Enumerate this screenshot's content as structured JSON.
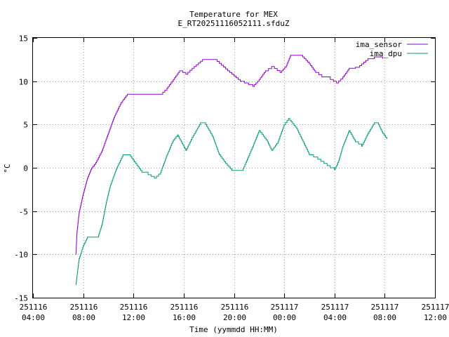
{
  "chart_data": {
    "type": "line",
    "title": "Temperature for MEX",
    "subtitle": "E_RT20251116052111.sfduZ",
    "xlabel": "Time (yymmdd HH:MM)",
    "ylabel": "°C",
    "grid": true,
    "legend_position": "top-right",
    "xlim": [
      "251116 04:00",
      "251117 12:00"
    ],
    "ylim": [
      -15,
      15
    ],
    "x_ticks": [
      {
        "line1": "251116",
        "line2": "04:00"
      },
      {
        "line1": "251116",
        "line2": "08:00"
      },
      {
        "line1": "251116",
        "line2": "12:00"
      },
      {
        "line1": "251116",
        "line2": "16:00"
      },
      {
        "line1": "251116",
        "line2": "20:00"
      },
      {
        "line1": "251117",
        "line2": "00:00"
      },
      {
        "line1": "251117",
        "line2": "04:00"
      },
      {
        "line1": "251117",
        "line2": "08:00"
      },
      {
        "line1": "251117",
        "line2": "12:00"
      }
    ],
    "y_ticks": [
      "-15",
      "-10",
      "-5",
      "0",
      "5",
      "10",
      "15"
    ],
    "series": [
      {
        "name": "ima_sensor",
        "color": "#9400d3",
        "points": [
          [
            "251116 07:25",
            -10.0
          ],
          [
            "251116 07:30",
            -7.5
          ],
          [
            "251116 07:40",
            -5.2
          ],
          [
            "251116 08:00",
            -3.0
          ],
          [
            "251116 08:20",
            -1.2
          ],
          [
            "251116 08:40",
            0.0
          ],
          [
            "251116 09:00",
            0.6
          ],
          [
            "251116 09:30",
            2.0
          ],
          [
            "251116 10:00",
            4.0
          ],
          [
            "251116 10:30",
            6.0
          ],
          [
            "251116 11:00",
            7.5
          ],
          [
            "251116 11:30",
            8.5
          ],
          [
            "251116 14:10",
            8.5
          ],
          [
            "251116 14:40",
            9.2
          ],
          [
            "251116 15:10",
            10.2
          ],
          [
            "251116 15:40",
            11.2
          ],
          [
            "251116 16:10",
            10.8
          ],
          [
            "251116 16:40",
            11.5
          ],
          [
            "251116 17:30",
            12.5
          ],
          [
            "251116 18:30",
            12.5
          ],
          [
            "251116 19:30",
            11.2
          ],
          [
            "251116 20:30",
            10.0
          ],
          [
            "251116 21:30",
            9.4
          ],
          [
            "251116 22:00",
            10.2
          ],
          [
            "251116 22:30",
            11.2
          ],
          [
            "251116 23:00",
            11.7
          ],
          [
            "251116 23:40",
            11.0
          ],
          [
            "251117 00:10",
            11.8
          ],
          [
            "251117 00:30",
            13.0
          ],
          [
            "251117 01:20",
            13.0
          ],
          [
            "251117 02:00",
            12.0
          ],
          [
            "251117 02:30",
            11.0
          ],
          [
            "251117 03:00",
            10.5
          ],
          [
            "251117 03:40",
            10.2
          ],
          [
            "251117 04:10",
            9.8
          ],
          [
            "251117 04:40",
            10.5
          ],
          [
            "251117 05:10",
            11.5
          ],
          [
            "251117 05:40",
            11.6
          ],
          [
            "251117 06:00",
            11.8
          ],
          [
            "251117 06:40",
            12.6
          ],
          [
            "251117 07:10",
            12.8
          ],
          [
            "251117 07:50",
            12.6
          ]
        ]
      },
      {
        "name": "ima_dpu",
        "color": "#009e73",
        "points": [
          [
            "251116 07:25",
            -13.5
          ],
          [
            "251116 07:40",
            -10.5
          ],
          [
            "251116 08:00",
            -9.0
          ],
          [
            "251116 08:20",
            -8.0
          ],
          [
            "251116 09:10",
            -8.0
          ],
          [
            "251116 09:30",
            -6.5
          ],
          [
            "251116 09:50",
            -4.0
          ],
          [
            "251116 10:10",
            -2.0
          ],
          [
            "251116 10:40",
            0.0
          ],
          [
            "251116 11:10",
            1.5
          ],
          [
            "251116 11:40",
            1.5
          ],
          [
            "251116 12:10",
            0.5
          ],
          [
            "251116 12:40",
            -0.5
          ],
          [
            "251116 13:10",
            -0.8
          ],
          [
            "251116 13:40",
            -1.2
          ],
          [
            "251116 14:10",
            -0.5
          ],
          [
            "251116 14:40",
            1.5
          ],
          [
            "251116 15:10",
            3.2
          ],
          [
            "251116 15:30",
            3.8
          ],
          [
            "251116 16:10",
            2.0
          ],
          [
            "251116 16:40",
            3.5
          ],
          [
            "251116 17:20",
            5.2
          ],
          [
            "251116 17:40",
            5.2
          ],
          [
            "251116 18:20",
            3.5
          ],
          [
            "251116 18:50",
            1.5
          ],
          [
            "251116 19:20",
            0.5
          ],
          [
            "251116 19:50",
            -0.3
          ],
          [
            "251116 20:40",
            -0.3
          ],
          [
            "251116 21:00",
            0.8
          ],
          [
            "251116 21:30",
            2.5
          ],
          [
            "251116 22:00",
            4.3
          ],
          [
            "251116 22:40",
            3.0
          ],
          [
            "251116 23:00",
            2.0
          ],
          [
            "251116 23:30",
            3.0
          ],
          [
            "251117 00:00",
            5.0
          ],
          [
            "251117 00:20",
            5.7
          ],
          [
            "251117 01:00",
            4.5
          ],
          [
            "251117 01:30",
            3.0
          ],
          [
            "251117 02:00",
            1.5
          ],
          [
            "251117 02:40",
            1.0
          ],
          [
            "251117 03:10",
            0.5
          ],
          [
            "251117 03:40",
            0.0
          ],
          [
            "251117 04:00",
            -0.2
          ],
          [
            "251117 04:20",
            0.8
          ],
          [
            "251117 04:40",
            2.5
          ],
          [
            "251117 05:10",
            4.3
          ],
          [
            "251117 05:40",
            3.0
          ],
          [
            "251117 06:10",
            2.5
          ],
          [
            "251117 06:40",
            4.0
          ],
          [
            "251117 07:10",
            5.2
          ],
          [
            "251117 07:30",
            5.0
          ],
          [
            "251117 07:50",
            4.0
          ],
          [
            "251117 08:10",
            3.3
          ]
        ]
      }
    ]
  }
}
